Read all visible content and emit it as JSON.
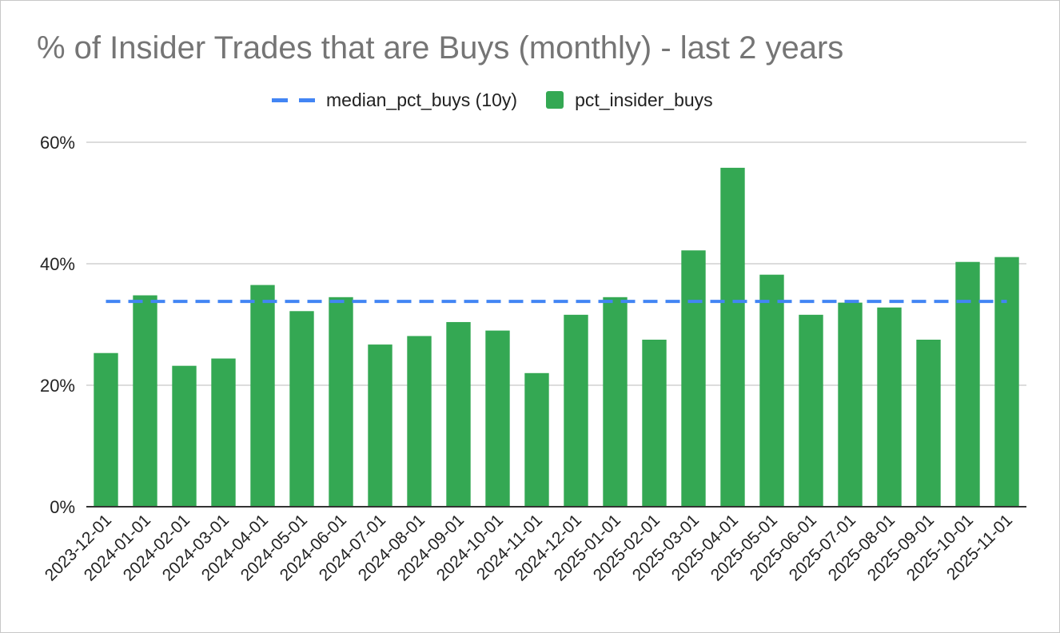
{
  "chart_data": {
    "type": "bar",
    "title": "% of Insider Trades that are Buys (monthly) - last 2 years",
    "xlabel": "",
    "ylabel": "",
    "ylim": [
      0,
      60
    ],
    "yticks": [
      0,
      20,
      40,
      60
    ],
    "ytick_labels": [
      "0%",
      "20%",
      "40%",
      "60%"
    ],
    "categories": [
      "2023-12-01",
      "2024-01-01",
      "2024-02-01",
      "2024-03-01",
      "2024-04-01",
      "2024-05-01",
      "2024-06-01",
      "2024-07-01",
      "2024-08-01",
      "2024-09-01",
      "2024-10-01",
      "2024-11-01",
      "2024-12-01",
      "2025-01-01",
      "2025-02-01",
      "2025-03-01",
      "2025-04-01",
      "2025-05-01",
      "2025-06-01",
      "2025-07-01",
      "2025-08-01",
      "2025-09-01",
      "2025-10-01",
      "2025-11-01"
    ],
    "series": [
      {
        "name": "pct_insider_buys",
        "type": "bar",
        "color": "#34a853",
        "values": [
          25.3,
          34.8,
          23.2,
          24.4,
          36.5,
          32.2,
          34.5,
          26.7,
          28.1,
          30.4,
          29.0,
          22.0,
          31.6,
          34.5,
          27.5,
          42.2,
          55.8,
          38.2,
          31.6,
          33.6,
          32.8,
          27.5,
          40.3,
          41.1
        ]
      },
      {
        "name": "median_pct_buys (10y)",
        "type": "line",
        "style": "dashed",
        "color": "#4285f4",
        "value": 33.8
      }
    ],
    "legend_position": "top-center",
    "grid": true
  }
}
